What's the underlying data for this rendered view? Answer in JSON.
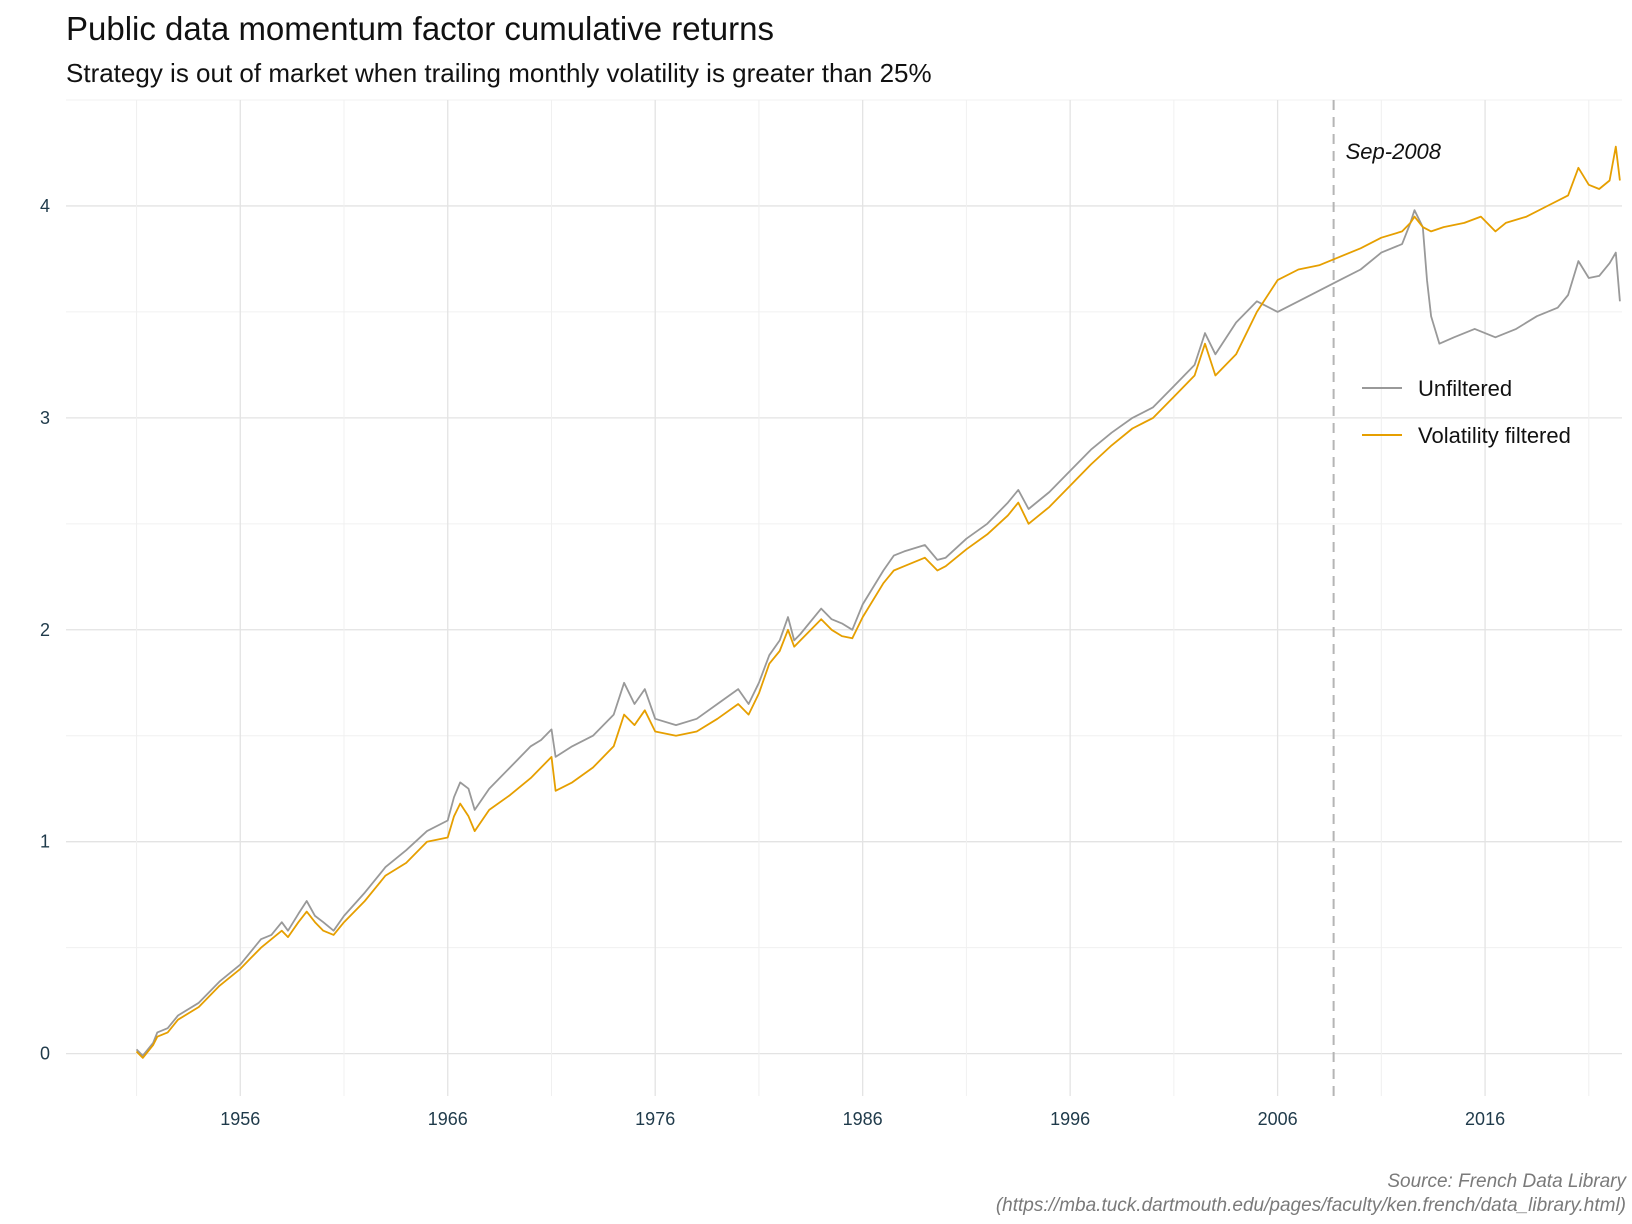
{
  "chart_data": {
    "type": "line",
    "title": "Public data momentum factor cumulative returns",
    "subtitle": "Strategy is out of market when trailing monthly volatility is greater than 25%",
    "xlabel": "",
    "ylabel": "",
    "x_ticks": [
      "1956",
      "1966",
      "1976",
      "1986",
      "1996",
      "2006",
      "2016"
    ],
    "y_ticks": [
      "0",
      "1",
      "2",
      "3",
      "4"
    ],
    "xlim": [
      1947.6,
      2022.6
    ],
    "ylim": [
      -0.2,
      4.5
    ],
    "grid": true,
    "legend_position": "right",
    "annotation": {
      "x": 2008.7,
      "label": "Sep-2008"
    },
    "series": [
      {
        "name": "Unfiltered",
        "color": "#999999",
        "points": [
          [
            1951.0,
            0.02
          ],
          [
            1951.3,
            -0.01
          ],
          [
            1951.8,
            0.05
          ],
          [
            1952.0,
            0.1
          ],
          [
            1952.5,
            0.12
          ],
          [
            1953.0,
            0.18
          ],
          [
            1954.0,
            0.24
          ],
          [
            1955.0,
            0.34
          ],
          [
            1956.0,
            0.42
          ],
          [
            1956.5,
            0.48
          ],
          [
            1957.0,
            0.54
          ],
          [
            1957.5,
            0.56
          ],
          [
            1958.0,
            0.62
          ],
          [
            1958.3,
            0.58
          ],
          [
            1958.8,
            0.66
          ],
          [
            1959.2,
            0.72
          ],
          [
            1959.6,
            0.65
          ],
          [
            1960.0,
            0.62
          ],
          [
            1960.5,
            0.58
          ],
          [
            1961.0,
            0.65
          ],
          [
            1962.0,
            0.76
          ],
          [
            1963.0,
            0.88
          ],
          [
            1964.0,
            0.96
          ],
          [
            1965.0,
            1.05
          ],
          [
            1966.0,
            1.1
          ],
          [
            1966.3,
            1.21
          ],
          [
            1966.6,
            1.28
          ],
          [
            1967.0,
            1.25
          ],
          [
            1967.3,
            1.15
          ],
          [
            1968.0,
            1.25
          ],
          [
            1969.0,
            1.35
          ],
          [
            1970.0,
            1.45
          ],
          [
            1970.5,
            1.48
          ],
          [
            1971.0,
            1.53
          ],
          [
            1971.2,
            1.4
          ],
          [
            1972.0,
            1.45
          ],
          [
            1973.0,
            1.5
          ],
          [
            1974.0,
            1.6
          ],
          [
            1974.5,
            1.75
          ],
          [
            1975.0,
            1.65
          ],
          [
            1975.5,
            1.72
          ],
          [
            1976.0,
            1.58
          ],
          [
            1977.0,
            1.55
          ],
          [
            1978.0,
            1.58
          ],
          [
            1979.0,
            1.65
          ],
          [
            1980.0,
            1.72
          ],
          [
            1980.5,
            1.65
          ],
          [
            1981.0,
            1.75
          ],
          [
            1981.5,
            1.88
          ],
          [
            1982.0,
            1.95
          ],
          [
            1982.4,
            2.06
          ],
          [
            1982.7,
            1.95
          ],
          [
            1983.0,
            1.98
          ],
          [
            1984.0,
            2.1
          ],
          [
            1984.5,
            2.05
          ],
          [
            1985.0,
            2.03
          ],
          [
            1985.5,
            2.0
          ],
          [
            1986.0,
            2.12
          ],
          [
            1987.0,
            2.28
          ],
          [
            1987.5,
            2.35
          ],
          [
            1988.0,
            2.37
          ],
          [
            1989.0,
            2.4
          ],
          [
            1989.6,
            2.33
          ],
          [
            1990.0,
            2.34
          ],
          [
            1991.0,
            2.43
          ],
          [
            1992.0,
            2.5
          ],
          [
            1993.0,
            2.6
          ],
          [
            1993.5,
            2.66
          ],
          [
            1994.0,
            2.57
          ],
          [
            1995.0,
            2.65
          ],
          [
            1996.0,
            2.75
          ],
          [
            1997.0,
            2.85
          ],
          [
            1998.0,
            2.93
          ],
          [
            1999.0,
            3.0
          ],
          [
            2000.0,
            3.05
          ],
          [
            2001.0,
            3.15
          ],
          [
            2002.0,
            3.25
          ],
          [
            2002.5,
            3.4
          ],
          [
            2003.0,
            3.3
          ],
          [
            2004.0,
            3.45
          ],
          [
            2005.0,
            3.55
          ],
          [
            2006.0,
            3.5
          ],
          [
            2007.0,
            3.55
          ],
          [
            2008.0,
            3.6
          ],
          [
            2009.0,
            3.65
          ],
          [
            2010.0,
            3.7
          ],
          [
            2011.0,
            3.78
          ],
          [
            2012.0,
            3.82
          ],
          [
            2012.4,
            3.92
          ],
          [
            2012.6,
            3.98
          ],
          [
            2013.0,
            3.9
          ],
          [
            2013.2,
            3.65
          ],
          [
            2013.4,
            3.48
          ],
          [
            2013.8,
            3.35
          ],
          [
            2014.5,
            3.38
          ],
          [
            2015.5,
            3.42
          ],
          [
            2016.5,
            3.38
          ],
          [
            2017.5,
            3.42
          ],
          [
            2018.5,
            3.48
          ],
          [
            2019.5,
            3.52
          ],
          [
            2020.0,
            3.58
          ],
          [
            2020.5,
            3.74
          ],
          [
            2021.0,
            3.66
          ],
          [
            2021.5,
            3.67
          ],
          [
            2022.0,
            3.73
          ],
          [
            2022.3,
            3.78
          ],
          [
            2022.5,
            3.55
          ]
        ]
      },
      {
        "name": "Volatility filtered",
        "color": "#E69F00",
        "points": [
          [
            1951.0,
            0.01
          ],
          [
            1951.3,
            -0.02
          ],
          [
            1951.8,
            0.04
          ],
          [
            1952.0,
            0.08
          ],
          [
            1952.5,
            0.1
          ],
          [
            1953.0,
            0.16
          ],
          [
            1954.0,
            0.22
          ],
          [
            1955.0,
            0.32
          ],
          [
            1956.0,
            0.4
          ],
          [
            1956.5,
            0.45
          ],
          [
            1957.0,
            0.5
          ],
          [
            1957.5,
            0.54
          ],
          [
            1958.0,
            0.58
          ],
          [
            1958.3,
            0.55
          ],
          [
            1958.8,
            0.62
          ],
          [
            1959.2,
            0.67
          ],
          [
            1959.6,
            0.62
          ],
          [
            1960.0,
            0.58
          ],
          [
            1960.5,
            0.56
          ],
          [
            1961.0,
            0.62
          ],
          [
            1962.0,
            0.72
          ],
          [
            1963.0,
            0.84
          ],
          [
            1964.0,
            0.9
          ],
          [
            1965.0,
            1.0
          ],
          [
            1966.0,
            1.02
          ],
          [
            1966.3,
            1.12
          ],
          [
            1966.6,
            1.18
          ],
          [
            1967.0,
            1.12
          ],
          [
            1967.3,
            1.05
          ],
          [
            1968.0,
            1.15
          ],
          [
            1969.0,
            1.22
          ],
          [
            1970.0,
            1.3
          ],
          [
            1970.5,
            1.35
          ],
          [
            1971.0,
            1.4
          ],
          [
            1971.2,
            1.24
          ],
          [
            1972.0,
            1.28
          ],
          [
            1973.0,
            1.35
          ],
          [
            1974.0,
            1.45
          ],
          [
            1974.5,
            1.6
          ],
          [
            1975.0,
            1.55
          ],
          [
            1975.5,
            1.62
          ],
          [
            1976.0,
            1.52
          ],
          [
            1977.0,
            1.5
          ],
          [
            1978.0,
            1.52
          ],
          [
            1979.0,
            1.58
          ],
          [
            1980.0,
            1.65
          ],
          [
            1980.5,
            1.6
          ],
          [
            1981.0,
            1.7
          ],
          [
            1981.5,
            1.84
          ],
          [
            1982.0,
            1.9
          ],
          [
            1982.4,
            2.0
          ],
          [
            1982.7,
            1.92
          ],
          [
            1983.0,
            1.95
          ],
          [
            1984.0,
            2.05
          ],
          [
            1984.5,
            2.0
          ],
          [
            1985.0,
            1.97
          ],
          [
            1985.5,
            1.96
          ],
          [
            1986.0,
            2.06
          ],
          [
            1987.0,
            2.22
          ],
          [
            1987.5,
            2.28
          ],
          [
            1988.0,
            2.3
          ],
          [
            1989.0,
            2.34
          ],
          [
            1989.6,
            2.28
          ],
          [
            1990.0,
            2.3
          ],
          [
            1991.0,
            2.38
          ],
          [
            1992.0,
            2.45
          ],
          [
            1993.0,
            2.54
          ],
          [
            1993.5,
            2.6
          ],
          [
            1994.0,
            2.5
          ],
          [
            1995.0,
            2.58
          ],
          [
            1996.0,
            2.68
          ],
          [
            1997.0,
            2.78
          ],
          [
            1998.0,
            2.87
          ],
          [
            1999.0,
            2.95
          ],
          [
            2000.0,
            3.0
          ],
          [
            2001.0,
            3.1
          ],
          [
            2002.0,
            3.2
          ],
          [
            2002.5,
            3.35
          ],
          [
            2003.0,
            3.2
          ],
          [
            2004.0,
            3.3
          ],
          [
            2005.0,
            3.5
          ],
          [
            2006.0,
            3.65
          ],
          [
            2007.0,
            3.7
          ],
          [
            2008.0,
            3.72
          ],
          [
            2009.0,
            3.76
          ],
          [
            2010.0,
            3.8
          ],
          [
            2011.0,
            3.85
          ],
          [
            2012.0,
            3.88
          ],
          [
            2012.4,
            3.92
          ],
          [
            2012.6,
            3.95
          ],
          [
            2013.0,
            3.9
          ],
          [
            2013.4,
            3.88
          ],
          [
            2014.0,
            3.9
          ],
          [
            2015.0,
            3.92
          ],
          [
            2015.8,
            3.95
          ],
          [
            2016.5,
            3.88
          ],
          [
            2017.0,
            3.92
          ],
          [
            2018.0,
            3.95
          ],
          [
            2019.0,
            4.0
          ],
          [
            2020.0,
            4.05
          ],
          [
            2020.5,
            4.18
          ],
          [
            2021.0,
            4.1
          ],
          [
            2021.5,
            4.08
          ],
          [
            2022.0,
            4.12
          ],
          [
            2022.3,
            4.28
          ],
          [
            2022.5,
            4.12
          ]
        ]
      }
    ]
  },
  "caption": {
    "source": "Source: French Data Library",
    "url": "(https://mba.tuck.dartmouth.edu/pages/faculty/ken.french/data_library.html)"
  }
}
